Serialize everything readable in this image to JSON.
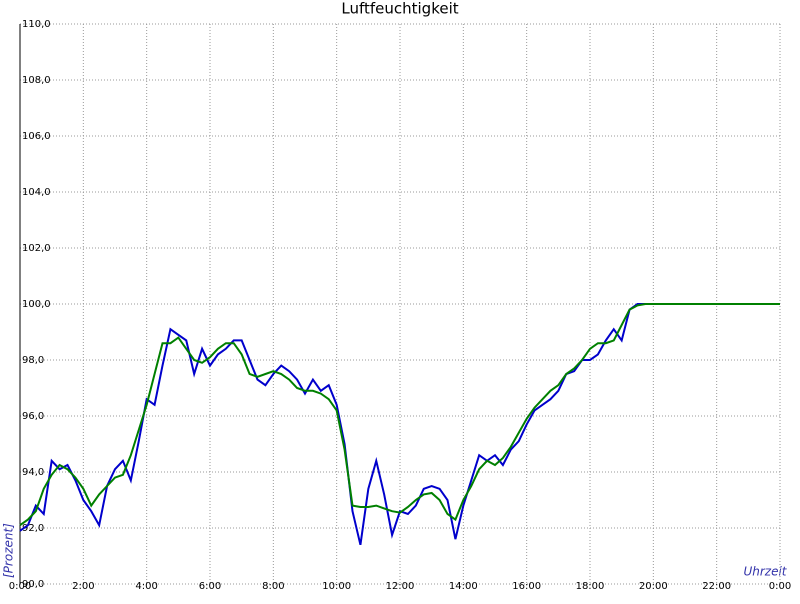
{
  "chart_data": {
    "type": "line",
    "title": "Luftfeuchtigkeit",
    "ylabel": "[Prozent]",
    "xlabel": "Uhrzeit",
    "x": [
      0,
      0.25,
      0.5,
      0.75,
      1,
      1.25,
      1.5,
      1.75,
      2,
      2.25,
      2.5,
      2.75,
      3,
      3.25,
      3.5,
      3.75,
      4,
      4.25,
      4.5,
      4.75,
      5,
      5.25,
      5.5,
      5.75,
      6,
      6.25,
      6.5,
      6.75,
      7,
      7.25,
      7.5,
      7.75,
      8,
      8.25,
      8.5,
      8.75,
      9,
      9.25,
      9.5,
      9.75,
      10,
      10.25,
      10.5,
      10.75,
      11,
      11.25,
      11.5,
      11.75,
      12,
      12.25,
      12.5,
      12.75,
      13,
      13.25,
      13.5,
      13.75,
      14,
      14.25,
      14.5,
      14.75,
      15,
      15.25,
      15.5,
      15.75,
      16,
      16.25,
      16.5,
      16.75,
      17,
      17.25,
      17.5,
      17.75,
      18,
      18.25,
      18.5,
      18.75,
      19,
      19.25,
      19.5,
      19.75,
      20,
      22,
      24
    ],
    "series": [
      {
        "color": "#0000cc",
        "values": [
          91.9,
          92.1,
          92.8,
          92.5,
          94.4,
          94.1,
          94.25,
          93.7,
          93.0,
          92.6,
          92.1,
          93.5,
          94.1,
          94.4,
          93.7,
          95.1,
          96.6,
          96.4,
          97.8,
          99.1,
          98.9,
          98.7,
          97.5,
          98.4,
          97.8,
          98.2,
          98.4,
          98.7,
          98.7,
          98.0,
          97.3,
          97.1,
          97.5,
          97.8,
          97.6,
          97.3,
          96.8,
          97.3,
          96.9,
          97.1,
          96.4,
          95.0,
          92.6,
          91.4,
          93.4,
          94.4,
          93.2,
          91.75,
          92.6,
          92.5,
          92.8,
          93.4,
          93.5,
          93.4,
          93.0,
          91.6,
          92.8,
          93.7,
          94.6,
          94.4,
          94.6,
          94.25,
          94.8,
          95.1,
          95.7,
          96.2,
          96.4,
          96.6,
          96.9,
          97.5,
          97.6,
          98.0,
          98.0,
          98.2,
          98.7,
          99.1,
          98.7,
          99.8,
          100,
          100,
          100,
          100,
          100
        ]
      },
      {
        "color": "#008000",
        "values": [
          92.1,
          92.3,
          92.6,
          93.4,
          93.9,
          94.25,
          94.1,
          93.8,
          93.4,
          92.8,
          93.2,
          93.5,
          93.8,
          93.9,
          94.6,
          95.5,
          96.4,
          97.5,
          98.6,
          98.6,
          98.8,
          98.4,
          98.0,
          97.9,
          98.1,
          98.4,
          98.6,
          98.6,
          98.2,
          97.5,
          97.4,
          97.5,
          97.6,
          97.5,
          97.3,
          97.0,
          96.9,
          96.9,
          96.8,
          96.6,
          96.2,
          94.8,
          92.8,
          92.75,
          92.75,
          92.8,
          92.7,
          92.6,
          92.55,
          92.75,
          93.0,
          93.2,
          93.25,
          93.0,
          92.5,
          92.3,
          93.0,
          93.5,
          94.1,
          94.4,
          94.25,
          94.5,
          94.9,
          95.4,
          95.9,
          96.3,
          96.6,
          96.9,
          97.1,
          97.5,
          97.7,
          98.0,
          98.4,
          98.6,
          98.6,
          98.7,
          99.25,
          99.8,
          99.95,
          100,
          100,
          100,
          100
        ]
      }
    ],
    "xlim": [
      0,
      24
    ],
    "xticks": [
      {
        "value": 0,
        "label": "0:00"
      },
      {
        "value": 2,
        "label": "2:00"
      },
      {
        "value": 4,
        "label": "4:00"
      },
      {
        "value": 6,
        "label": "6:00"
      },
      {
        "value": 8,
        "label": "8:00"
      },
      {
        "value": 10,
        "label": "10:00"
      },
      {
        "value": 12,
        "label": "12:00"
      },
      {
        "value": 14,
        "label": "14:00"
      },
      {
        "value": 16,
        "label": "16:00"
      },
      {
        "value": 18,
        "label": "18:00"
      },
      {
        "value": 20,
        "label": "20:00"
      },
      {
        "value": 22,
        "label": "22:00"
      },
      {
        "value": 24,
        "label": "0:00"
      }
    ],
    "ylim": [
      90,
      110
    ],
    "yticks": [
      {
        "value": 90,
        "label": "90,0"
      },
      {
        "value": 92,
        "label": "92,0"
      },
      {
        "value": 94,
        "label": "94,0"
      },
      {
        "value": 96,
        "label": "96,0"
      },
      {
        "value": 98,
        "label": "98,0"
      },
      {
        "value": 100,
        "label": "100,0"
      },
      {
        "value": 102,
        "label": "102,0"
      },
      {
        "value": 104,
        "label": "104,0"
      },
      {
        "value": 106,
        "label": "106,0"
      },
      {
        "value": 108,
        "label": "108,0"
      },
      {
        "value": 110,
        "label": "110,0"
      }
    ],
    "grid": true
  }
}
